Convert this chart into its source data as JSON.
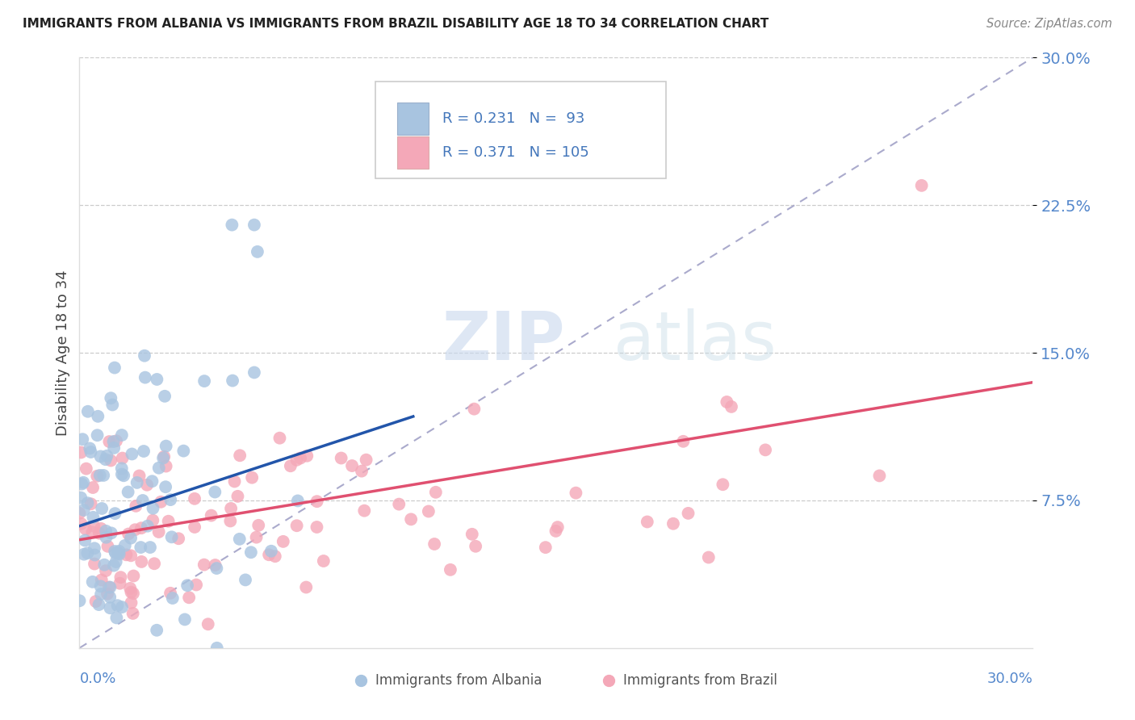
{
  "title": "IMMIGRANTS FROM ALBANIA VS IMMIGRANTS FROM BRAZIL DISABILITY AGE 18 TO 34 CORRELATION CHART",
  "source": "Source: ZipAtlas.com",
  "ylabel": "Disability Age 18 to 34",
  "xlim": [
    0.0,
    0.3
  ],
  "ylim": [
    0.0,
    0.3
  ],
  "yticks": [
    0.075,
    0.15,
    0.225,
    0.3
  ],
  "ytick_labels": [
    "7.5%",
    "15.0%",
    "22.5%",
    "30.0%"
  ],
  "albania_R": 0.231,
  "albania_N": 93,
  "brazil_R": 0.371,
  "brazil_N": 105,
  "albania_color": "#a8c4e0",
  "brazil_color": "#f4a8b8",
  "albania_line_color": "#2255aa",
  "brazil_line_color": "#e05070",
  "trendline_color": "#aaaacc",
  "background_color": "#ffffff"
}
